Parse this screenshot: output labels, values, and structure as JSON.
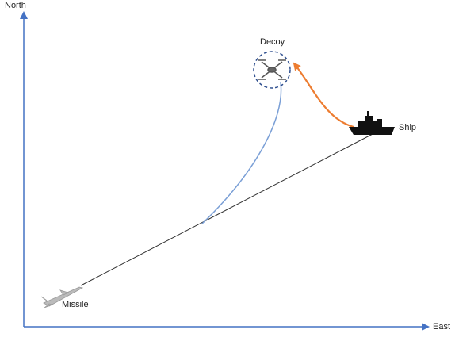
{
  "axes": {
    "y_label": "North",
    "x_label": "East"
  },
  "nodes": [
    {
      "label": "Decoy"
    },
    {
      "label": "Ship"
    },
    {
      "label": "Missile"
    }
  ]
}
